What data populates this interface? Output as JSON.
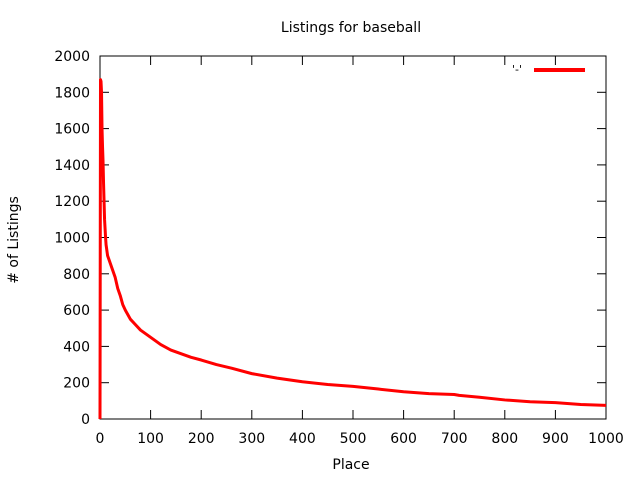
{
  "chart_data": {
    "type": "line",
    "title": "Listings for baseball",
    "xlabel": "Place",
    "ylabel": "# of Listings",
    "xlim": [
      0,
      1000
    ],
    "ylim": [
      0,
      2000
    ],
    "xticks": [
      0,
      100,
      200,
      300,
      400,
      500,
      600,
      700,
      800,
      900,
      1000
    ],
    "yticks": [
      0,
      200,
      400,
      600,
      800,
      1000,
      1200,
      1400,
      1600,
      1800,
      2000
    ],
    "grid": false,
    "legend_position": "top-right",
    "series": [
      {
        "name": "'-'",
        "color": "#ff0000",
        "x": [
          0,
          1,
          2,
          3,
          4,
          5,
          6,
          7,
          8,
          9,
          10,
          11,
          12,
          13,
          14,
          15,
          20,
          25,
          30,
          35,
          40,
          45,
          50,
          55,
          60,
          70,
          80,
          90,
          100,
          120,
          140,
          160,
          180,
          200,
          230,
          260,
          300,
          350,
          400,
          450,
          500,
          550,
          600,
          650,
          700,
          710,
          750,
          800,
          850,
          900,
          950,
          1000
        ],
        "y": [
          0,
          1870,
          1860,
          1800,
          1600,
          1500,
          1420,
          1300,
          1200,
          1100,
          1050,
          1000,
          960,
          940,
          920,
          900,
          860,
          820,
          780,
          720,
          680,
          630,
          600,
          575,
          550,
          520,
          490,
          470,
          450,
          410,
          380,
          360,
          340,
          325,
          300,
          280,
          250,
          225,
          205,
          190,
          180,
          165,
          150,
          140,
          135,
          130,
          120,
          105,
          95,
          90,
          80,
          75
        ]
      }
    ]
  }
}
